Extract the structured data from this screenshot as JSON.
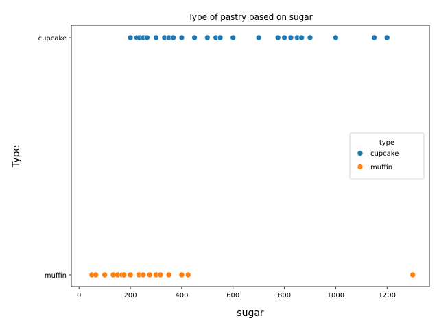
{
  "chart_data": {
    "type": "scatter",
    "title": "Type of pastry based on sugar",
    "xlabel": "sugar",
    "ylabel": "Type",
    "xlim": [
      -30,
      1365
    ],
    "xticks": [
      0,
      200,
      400,
      600,
      800,
      1000,
      1200
    ],
    "categories": [
      "cupcake",
      "muffin"
    ],
    "grid": false,
    "legend": {
      "title": "type",
      "position": "center-right"
    },
    "series": [
      {
        "name": "cupcake",
        "color": "#1f77b4",
        "category": "cupcake",
        "x": [
          200,
          225,
          235,
          250,
          265,
          300,
          333,
          350,
          367,
          400,
          450,
          500,
          533,
          550,
          600,
          700,
          775,
          800,
          825,
          850,
          867,
          900,
          1000,
          1150,
          1200
        ]
      },
      {
        "name": "muffin",
        "color": "#ff7f0e",
        "category": "muffin",
        "x": [
          50,
          65,
          100,
          133,
          150,
          167,
          175,
          200,
          233,
          250,
          275,
          300,
          317,
          350,
          400,
          425,
          1300
        ]
      }
    ]
  }
}
